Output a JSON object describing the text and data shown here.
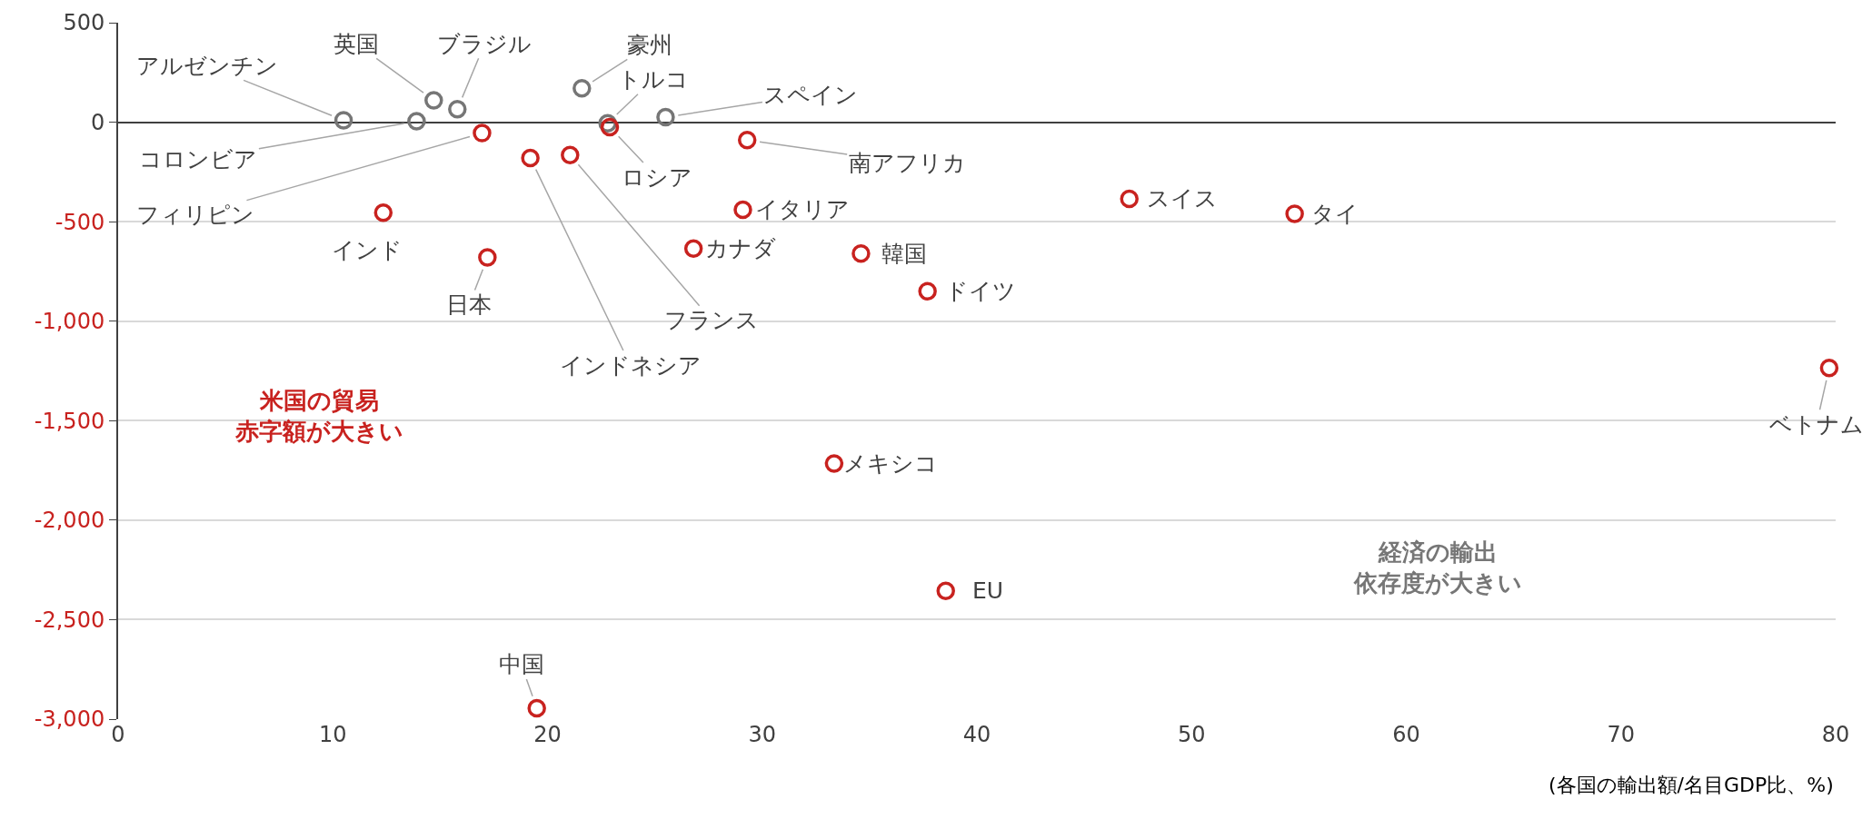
{
  "chart_data": {
    "type": "scatter",
    "xlabel": "(各国の輸出額/名目GDP比、%)",
    "series": [
      {
        "color": "#767676",
        "x": [
          10.5,
          14.7,
          15.8,
          21.6,
          22.8,
          25.5,
          13.9
        ],
        "values": [
          10,
          110,
          65,
          170,
          -5,
          25,
          5
        ]
      },
      {
        "color": "#c8221f",
        "x": [
          16.95,
          22.9,
          29.3,
          19.2,
          21.05,
          12.35,
          17.2,
          29.1,
          26.8,
          34.6,
          37.7,
          47.1,
          54.8,
          79.7,
          33.35,
          38.55,
          19.5
        ],
        "values": [
          -55,
          -25,
          -90,
          -180,
          -165,
          -455,
          -680,
          -440,
          -635,
          -660,
          -850,
          -385,
          -460,
          -1235,
          -1715,
          -2355,
          -2945
        ]
      }
    ],
    "annotations": [
      {
        "text": "アルゼンチン",
        "x": 10.5,
        "y": 10
      },
      {
        "text": "英国",
        "x": 14.7,
        "y": 110
      },
      {
        "text": "ブラジル",
        "x": 15.8,
        "y": 65
      },
      {
        "text": "豪州",
        "x": 21.6,
        "y": 170
      },
      {
        "text": "トルコ",
        "x": 22.8,
        "y": -5
      },
      {
        "text": "スペイン",
        "x": 25.5,
        "y": 25
      },
      {
        "text": "コロンビア",
        "x": 13.9,
        "y": 5
      },
      {
        "text": "フィリピン",
        "x": 16.95,
        "y": -55
      },
      {
        "text": "ロシア",
        "x": 22.9,
        "y": -25
      },
      {
        "text": "南アフリカ",
        "x": 29.3,
        "y": -90
      },
      {
        "text": "インドネシア",
        "x": 19.2,
        "y": -180
      },
      {
        "text": "フランス",
        "x": 21.05,
        "y": -165
      },
      {
        "text": "インド",
        "x": 12.35,
        "y": -455
      },
      {
        "text": "日本",
        "x": 17.2,
        "y": -680
      },
      {
        "text": "イタリア",
        "x": 29.1,
        "y": -440
      },
      {
        "text": "カナダ",
        "x": 26.8,
        "y": -635
      },
      {
        "text": "韓国",
        "x": 34.6,
        "y": -660
      },
      {
        "text": "ドイツ",
        "x": 37.7,
        "y": -850
      },
      {
        "text": "スイス",
        "x": 47.1,
        "y": -385
      },
      {
        "text": "タイ",
        "x": 54.8,
        "y": -460
      },
      {
        "text": "ベトナム",
        "x": 79.7,
        "y": -1235
      },
      {
        "text": "メキシコ",
        "x": 33.35,
        "y": -1715
      },
      {
        "text": "EU",
        "x": 38.55,
        "y": -2355
      },
      {
        "text": "中国",
        "x": 19.5,
        "y": -2945
      },
      "米国の貿易赤字額が大きい",
      "経済の輸出依存度が大きい"
    ],
    "xlim": [
      0,
      80
    ],
    "xticks": [
      0,
      10,
      20,
      30,
      40,
      50,
      60,
      70,
      80
    ],
    "ylim": [
      -3000,
      500
    ],
    "yticks": [
      500,
      0,
      -500,
      {
        "value": -1000,
        "label": "-1,000"
      },
      {
        "value": -1500,
        "label": "-1,500"
      },
      {
        "value": -2000,
        "label": "-2,000"
      },
      {
        "value": -2500,
        "label": "-2,500"
      },
      {
        "value": -3000,
        "label": "-3,000"
      }
    ],
    "grid": "y",
    "marker": "circle"
  }
}
